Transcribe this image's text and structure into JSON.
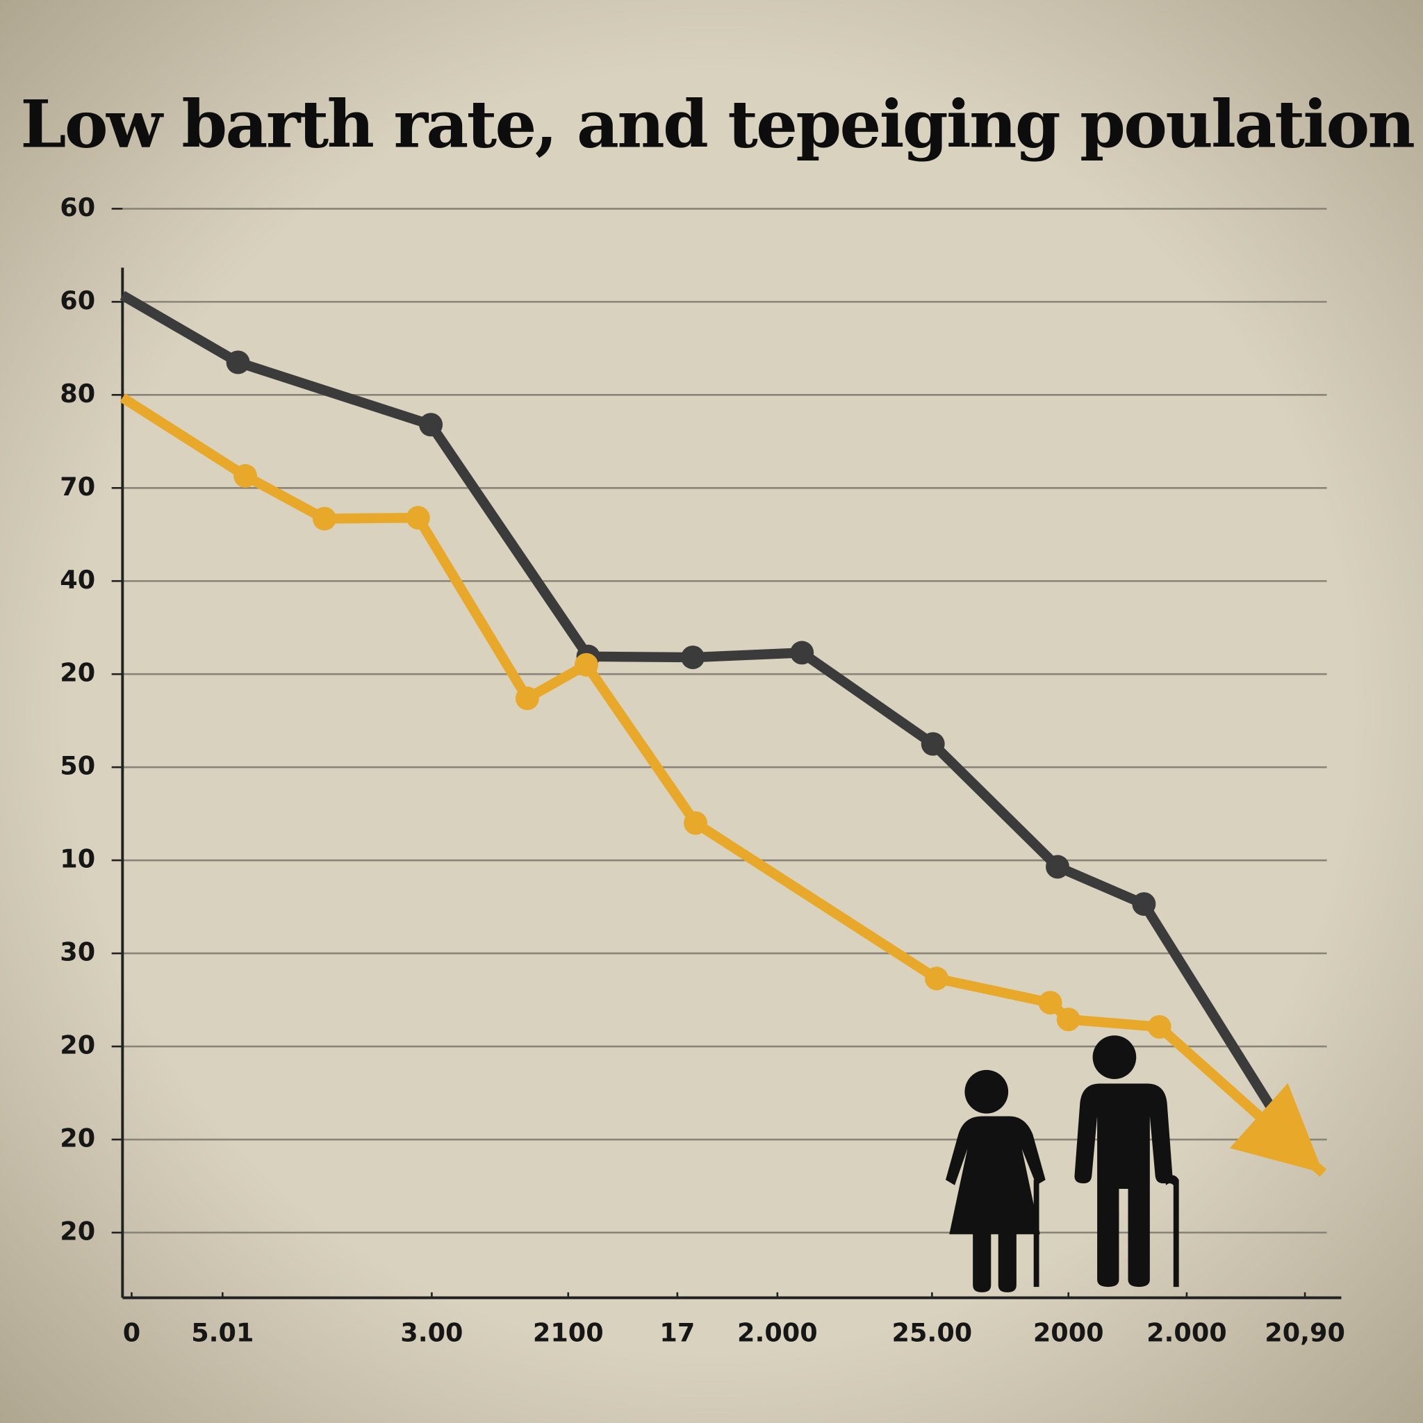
{
  "chart_data": {
    "type": "line",
    "title": "Low barth rate, and  tepeiging  poulation",
    "xlim": [
      0,
      13.4
    ],
    "xticks": [
      {
        "value": 0.1,
        "label": "0"
      },
      {
        "value": 1.1,
        "label": "5.01"
      },
      {
        "value": 3.4,
        "label": "3.00"
      },
      {
        "value": 4.9,
        "label": "2100"
      },
      {
        "value": 6.1,
        "label": "17"
      },
      {
        "value": 7.2,
        "label": "2.000"
      },
      {
        "value": 8.9,
        "label": "25.00"
      },
      {
        "value": 10.4,
        "label": "2000"
      },
      {
        "value": 11.7,
        "label": "2.000"
      },
      {
        "value": 13.0,
        "label": "20,90"
      }
    ],
    "ylim": [
      -0.7,
      11
    ],
    "yticks": [
      {
        "value": 11,
        "label": "60"
      },
      {
        "value": 10,
        "label": "60"
      },
      {
        "value": 9,
        "label": "80"
      },
      {
        "value": 8,
        "label": "70"
      },
      {
        "value": 7,
        "label": "40"
      },
      {
        "value": 6,
        "label": "20"
      },
      {
        "value": 5,
        "label": "50"
      },
      {
        "value": 4,
        "label": "10"
      },
      {
        "value": 3,
        "label": "30"
      },
      {
        "value": 2,
        "label": "20"
      },
      {
        "value": 1,
        "label": "20"
      },
      {
        "value": 0,
        "label": "20"
      }
    ],
    "grid": true,
    "series": [
      {
        "color": "#3b3b3b",
        "x": [
          0,
          1.27,
          3.39,
          5.12,
          6.27,
          7.47,
          8.91,
          10.28,
          11.23,
          12.65
        ],
        "values": [
          10.07,
          9.35,
          8.68,
          6.19,
          6.18,
          6.23,
          5.25,
          3.93,
          3.53,
          1.31
        ]
      },
      {
        "color": "#e8a92a",
        "x": [
          0,
          1.35,
          2.22,
          3.25,
          4.45,
          5.1,
          6.3,
          8.95,
          10.2,
          10.4,
          11.4,
          13.2
        ],
        "values": [
          8.97,
          8.13,
          7.67,
          7.68,
          5.74,
          6.1,
          4.4,
          2.73,
          2.47,
          2.29,
          2.21,
          0.64
        ]
      }
    ]
  }
}
